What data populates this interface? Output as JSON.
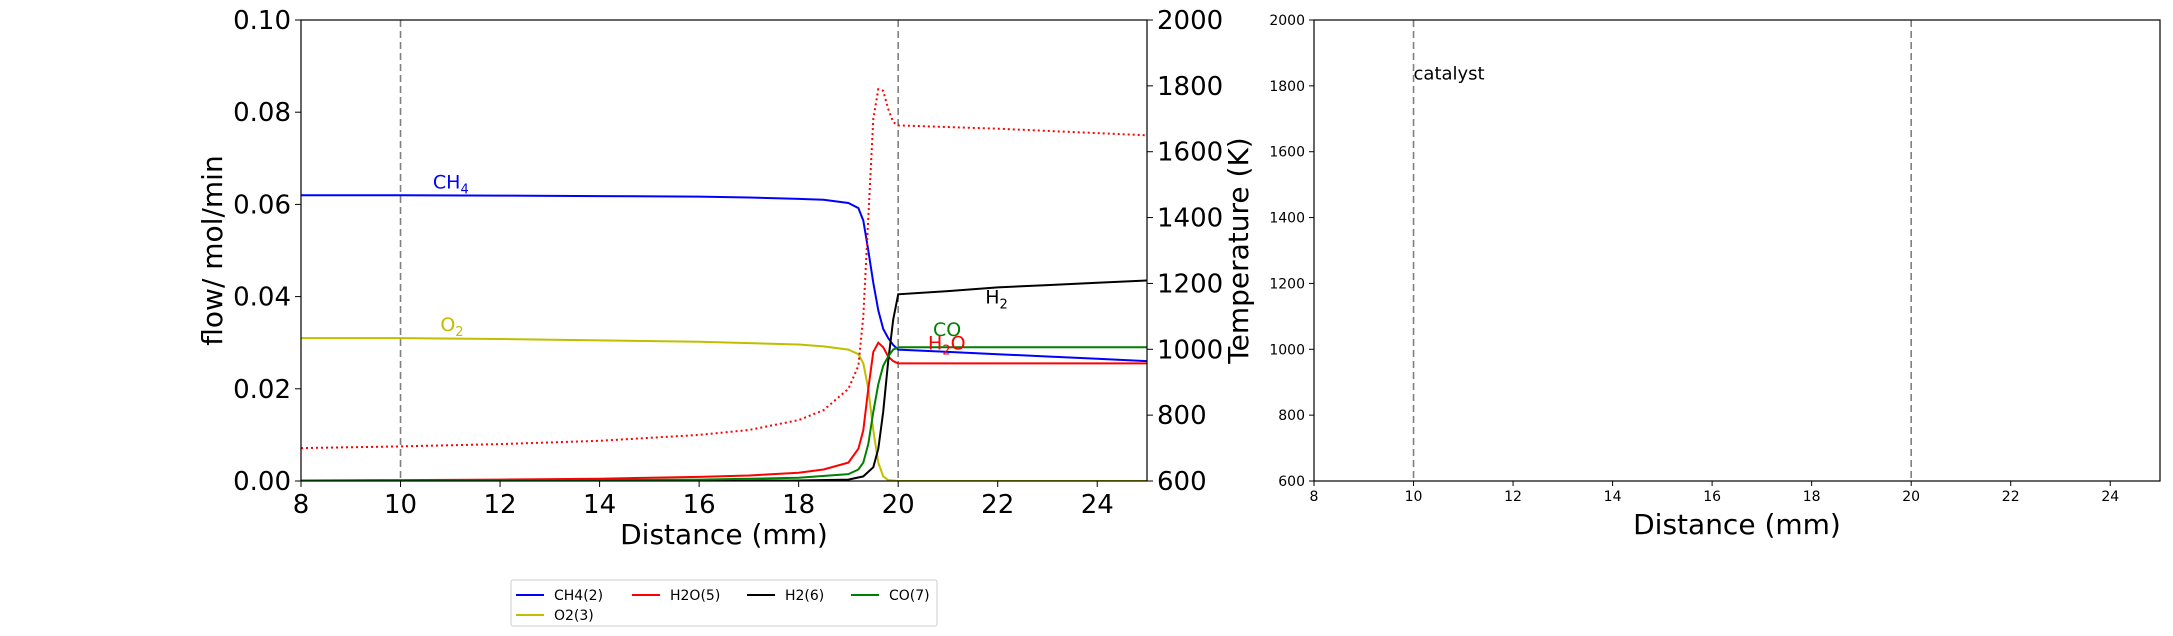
{
  "chart_data": [
    {
      "type": "line",
      "title": "",
      "xlabel": "Distance (mm)",
      "ylabel": "flow/ mol/min",
      "y2label": "Temperature (K)",
      "xlim": [
        8,
        25
      ],
      "ylim": [
        0,
        0.1
      ],
      "y2lim": [
        600,
        2000
      ],
      "xticks": [
        8,
        10,
        12,
        14,
        16,
        18,
        20,
        22,
        24
      ],
      "yticks": [
        0.0,
        0.02,
        0.04,
        0.06,
        0.08,
        0.1
      ],
      "y2ticks": [
        600,
        800,
        1000,
        1200,
        1400,
        1600,
        1800,
        2000
      ],
      "ytick_labels": [
        "0.00",
        "0.02",
        "0.04",
        "0.06",
        "0.08",
        "0.10"
      ],
      "vlines": [
        10,
        20
      ],
      "grid": false,
      "series": [
        {
          "name": "CH4(2)",
          "color": "#0000ff",
          "x": [
            8,
            10,
            12,
            14,
            16,
            17,
            18,
            18.5,
            19,
            19.2,
            19.3,
            19.4,
            19.5,
            19.6,
            19.7,
            19.8,
            19.9,
            20,
            21,
            22,
            23,
            24,
            25
          ],
          "values": [
            0.062,
            0.062,
            0.0619,
            0.0618,
            0.0617,
            0.0615,
            0.0612,
            0.061,
            0.0603,
            0.0592,
            0.0565,
            0.05,
            0.043,
            0.037,
            0.033,
            0.031,
            0.0295,
            0.0285,
            0.028,
            0.0275,
            0.027,
            0.0265,
            0.026
          ]
        },
        {
          "name": "O2(3)",
          "color": "#bfbf00",
          "x": [
            8,
            10,
            12,
            14,
            16,
            18,
            18.5,
            19,
            19.2,
            19.3,
            19.4,
            19.5,
            19.6,
            19.7,
            19.8,
            20,
            22,
            25
          ],
          "values": [
            0.031,
            0.031,
            0.0308,
            0.0305,
            0.0302,
            0.0296,
            0.0292,
            0.0285,
            0.0275,
            0.0255,
            0.02,
            0.011,
            0.004,
            0.001,
            0.0002,
            0.0,
            0.0,
            0.0
          ]
        },
        {
          "name": "H2O(5)",
          "color": "#ff0000",
          "x": [
            8,
            10,
            12,
            14,
            16,
            17,
            18,
            18.5,
            19,
            19.2,
            19.3,
            19.4,
            19.5,
            19.6,
            19.7,
            19.8,
            19.9,
            20,
            21,
            22,
            23,
            24,
            25
          ],
          "values": [
            0.0001,
            0.0002,
            0.0003,
            0.0005,
            0.0009,
            0.0012,
            0.0018,
            0.0025,
            0.004,
            0.007,
            0.011,
            0.02,
            0.028,
            0.03,
            0.029,
            0.027,
            0.026,
            0.0255,
            0.0255,
            0.0255,
            0.0255,
            0.0255,
            0.0255
          ]
        },
        {
          "name": "H2(6)",
          "color": "#000000",
          "x": [
            8,
            12,
            16,
            18,
            19,
            19.3,
            19.5,
            19.6,
            19.7,
            19.8,
            19.9,
            20,
            21,
            22,
            23,
            24,
            25
          ],
          "values": [
            0.0,
            0.0,
            0.0,
            0.0001,
            0.0003,
            0.001,
            0.003,
            0.007,
            0.015,
            0.026,
            0.035,
            0.0405,
            0.0412,
            0.042,
            0.0425,
            0.043,
            0.0435
          ]
        },
        {
          "name": "CO(7)",
          "color": "#008000",
          "x": [
            8,
            12,
            16,
            18,
            19,
            19.2,
            19.3,
            19.4,
            19.5,
            19.6,
            19.7,
            19.8,
            19.9,
            20,
            21,
            22,
            23,
            24,
            25
          ],
          "values": [
            0.0,
            0.0001,
            0.0003,
            0.0007,
            0.0015,
            0.0025,
            0.004,
            0.008,
            0.015,
            0.021,
            0.025,
            0.027,
            0.0285,
            0.029,
            0.029,
            0.029,
            0.029,
            0.029,
            0.029
          ]
        },
        {
          "color": "#ff0000",
          "style": "dotted",
          "axis": "y2",
          "x": [
            8,
            10,
            12,
            14,
            16,
            17,
            18,
            18.5,
            19,
            19.2,
            19.3,
            19.4,
            19.5,
            19.6,
            19.7,
            19.8,
            19.9,
            20,
            22,
            25
          ],
          "values": [
            700,
            705,
            712,
            722,
            740,
            755,
            785,
            815,
            880,
            950,
            1100,
            1400,
            1700,
            1790,
            1785,
            1730,
            1690,
            1680,
            1670,
            1650
          ]
        }
      ],
      "annotations": [
        {
          "text": "CH",
          "sub": "4",
          "x": 10.65,
          "y": 0.0635,
          "color": "#0000ff"
        },
        {
          "text": "O",
          "sub": "2",
          "x": 10.8,
          "y": 0.0325,
          "color": "#bfbf00"
        },
        {
          "text": "H",
          "sub": "2",
          "x": 21.75,
          "y": 0.0385,
          "color": "#000000"
        },
        {
          "text": "CO",
          "sub": "",
          "x": 20.7,
          "y": 0.0315,
          "color": "#008000"
        },
        {
          "text": "H",
          "sub": "2",
          "tail": "O",
          "x": 20.6,
          "y": 0.0285,
          "color": "#ff0000"
        }
      ]
    },
    {
      "type": "line",
      "title": "",
      "xlabel": "Distance (mm)",
      "ylabel": "",
      "xlim": [
        8,
        25
      ],
      "ylim": [
        600,
        2000
      ],
      "xticks": [
        8,
        10,
        12,
        14,
        16,
        18,
        20,
        22,
        24
      ],
      "yticks": [
        600,
        800,
        1000,
        1200,
        1400,
        1600,
        1800,
        2000
      ],
      "vlines": [
        10,
        20
      ],
      "grid": false,
      "series": [],
      "annotations": [
        {
          "text": "catalyst",
          "x": 10.0,
          "y": 1820
        }
      ]
    }
  ],
  "legend": {
    "placement": "bottom-center",
    "entries": [
      {
        "label": "CH4(2)",
        "color": "#0000ff"
      },
      {
        "label": "H2O(5)",
        "color": "#ff0000"
      },
      {
        "label": "H2(6)",
        "color": "#000000"
      },
      {
        "label": "CO(7)",
        "color": "#008000"
      },
      {
        "label": "O2(3)",
        "color": "#bfbf00"
      }
    ]
  }
}
